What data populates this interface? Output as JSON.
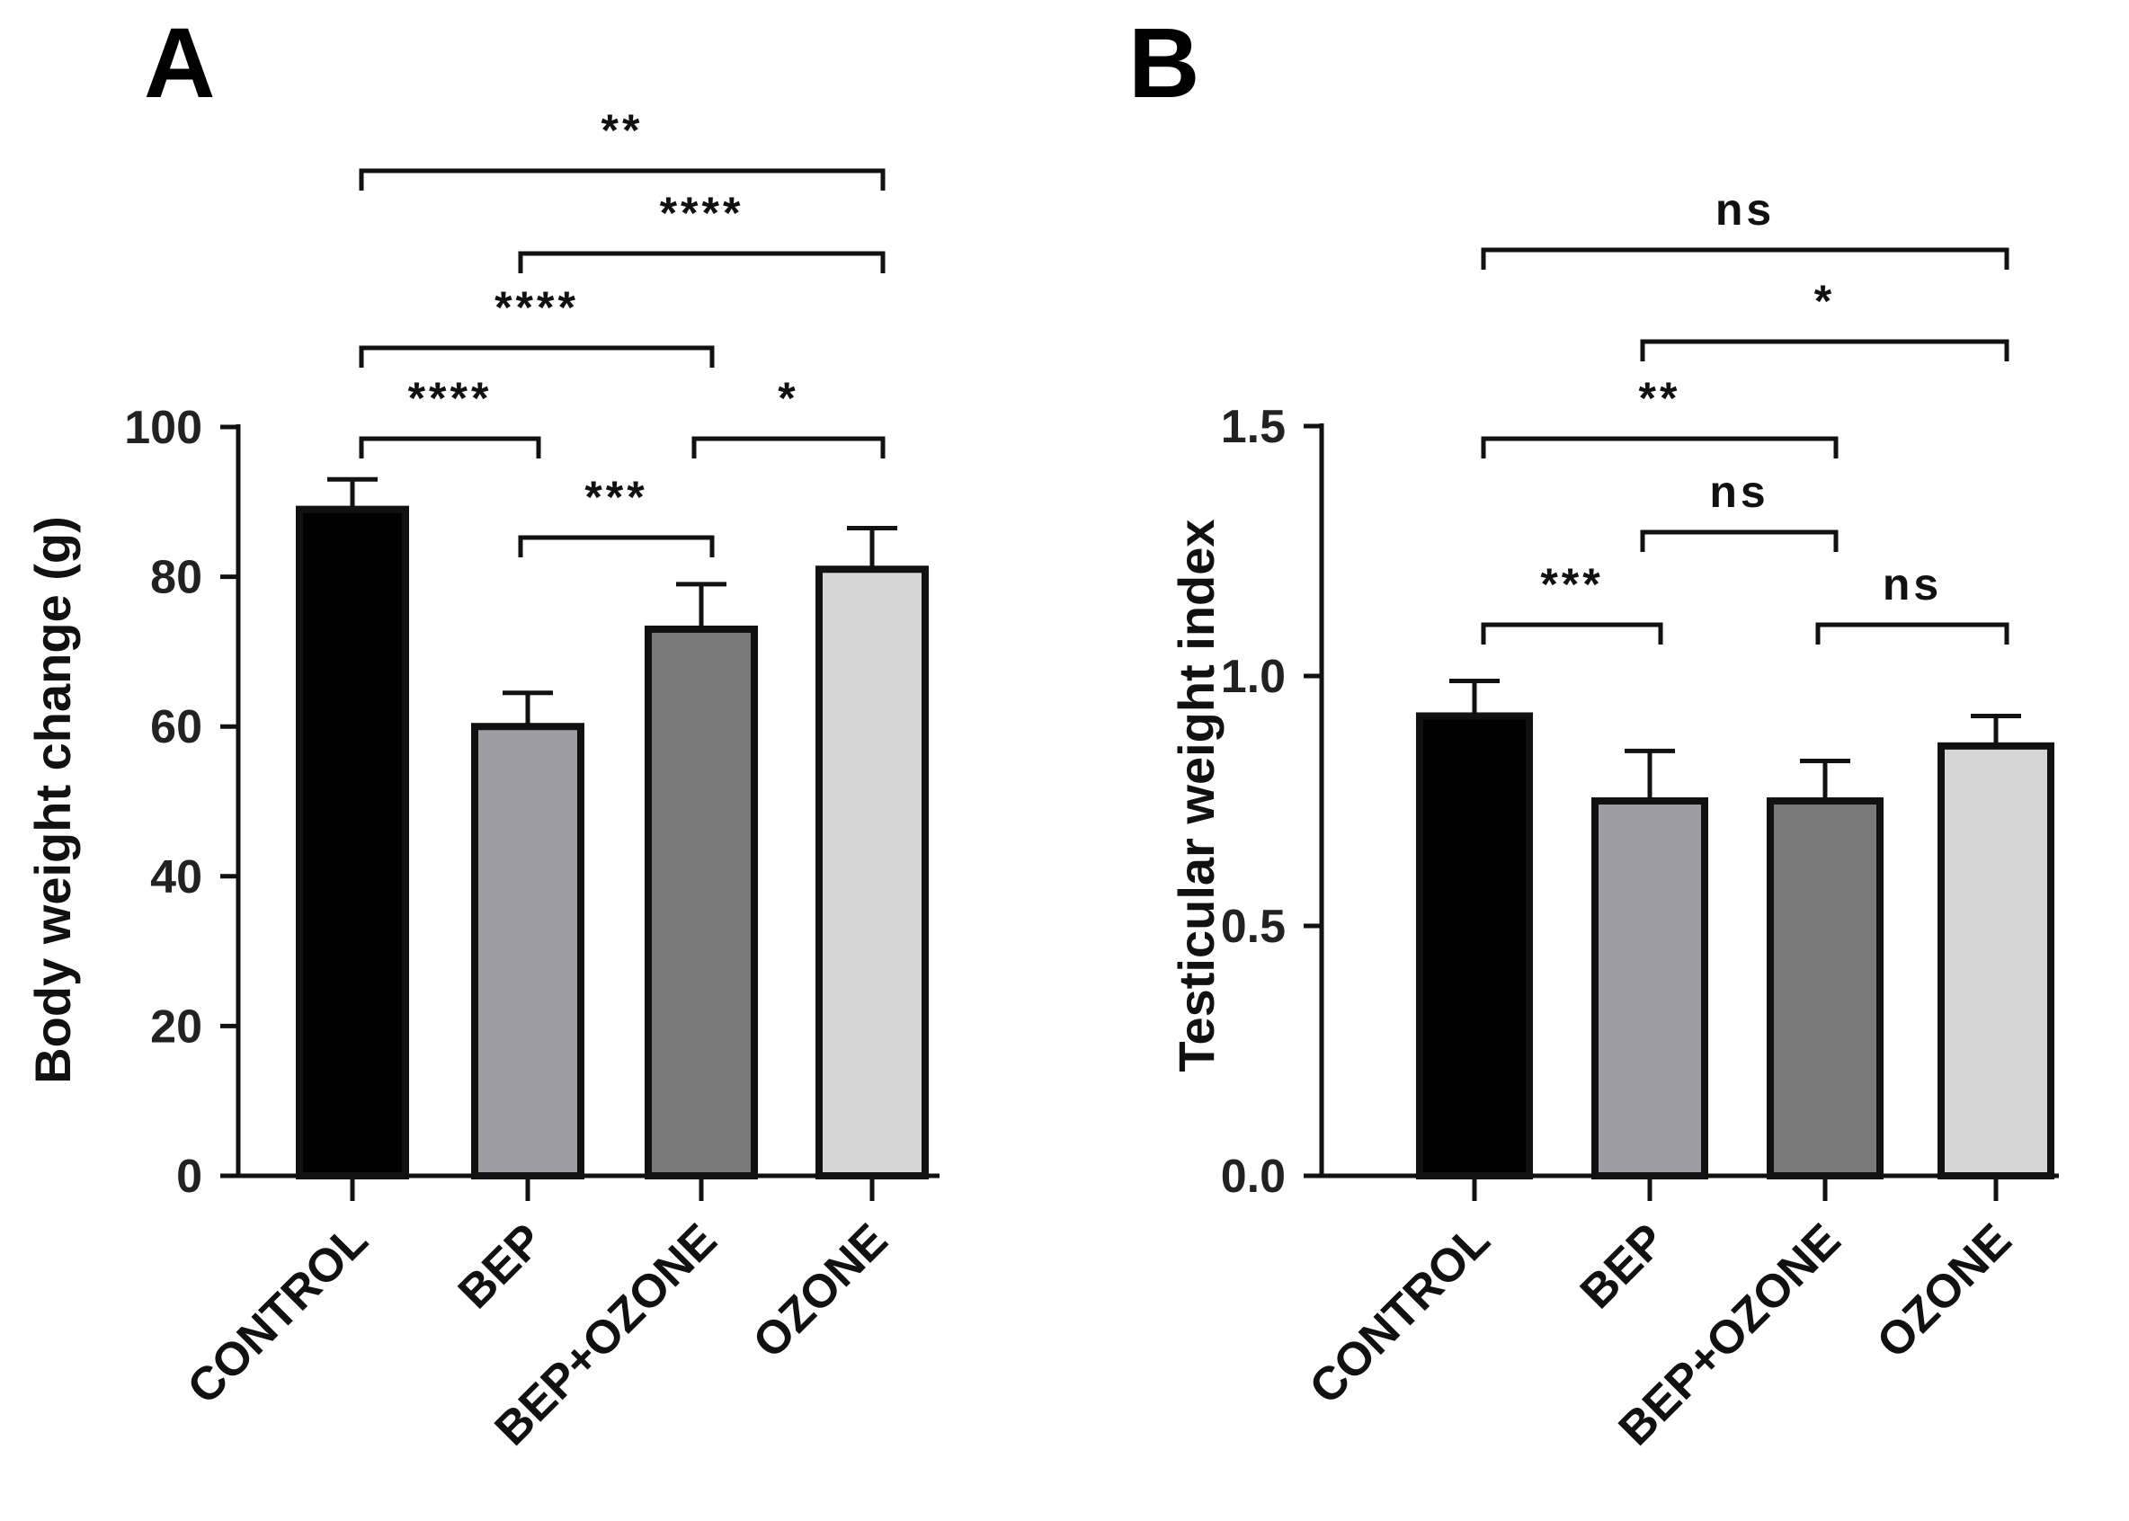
{
  "chart_data": [
    {
      "panel": "A",
      "type": "bar",
      "ylabel": "Body weight change (g)",
      "xlabel": "",
      "ylim": [
        0,
        100
      ],
      "yticks": [
        0,
        20,
        40,
        60,
        80,
        100
      ],
      "ytick_labels": [
        "0",
        "20",
        "40",
        "60",
        "80",
        "100"
      ],
      "categories": [
        "CONTROL",
        "BEP",
        "BEP+OZONE",
        "OZONE"
      ],
      "values": [
        89,
        60,
        73,
        81
      ],
      "errors": [
        4,
        4.5,
        6,
        5.5
      ],
      "colors": [
        "#000000",
        "#9d9da3",
        "#7a7a7a",
        "#d6d6d6"
      ],
      "comparisons": [
        {
          "from": 0,
          "to": 1,
          "label": "****",
          "level": 1
        },
        {
          "from": 1,
          "to": 2,
          "label": "***",
          "level": 0
        },
        {
          "from": 2,
          "to": 3,
          "label": "*",
          "level": 1
        },
        {
          "from": 0,
          "to": 2,
          "label": "****",
          "level": 2
        },
        {
          "from": 1,
          "to": 3,
          "label": "****",
          "level": 3
        },
        {
          "from": 0,
          "to": 3,
          "label": "**",
          "level": 4
        }
      ]
    },
    {
      "panel": "B",
      "type": "bar",
      "ylabel": "Testicular weight index",
      "xlabel": "",
      "ylim": [
        0,
        1.5
      ],
      "yticks": [
        0,
        0.5,
        1.0,
        1.5
      ],
      "ytick_labels": [
        "0.0",
        "0.5",
        "1.0",
        "1.5"
      ],
      "categories": [
        "CONTROL",
        "BEP",
        "BEP+OZONE",
        "OZONE"
      ],
      "values": [
        0.92,
        0.75,
        0.75,
        0.86
      ],
      "errors": [
        0.07,
        0.1,
        0.08,
        0.06
      ],
      "colors": [
        "#000000",
        "#9d9da3",
        "#7a7a7a",
        "#d6d6d6"
      ],
      "comparisons": [
        {
          "from": 0,
          "to": 1,
          "label": "***",
          "level": 0
        },
        {
          "from": 2,
          "to": 3,
          "label": "ns",
          "level": 0
        },
        {
          "from": 1,
          "to": 2,
          "label": "ns",
          "level": 1
        },
        {
          "from": 0,
          "to": 2,
          "label": "**",
          "level": 2
        },
        {
          "from": 1,
          "to": 3,
          "label": "*",
          "level": 3
        },
        {
          "from": 0,
          "to": 3,
          "label": "ns",
          "level": 4
        }
      ]
    }
  ]
}
